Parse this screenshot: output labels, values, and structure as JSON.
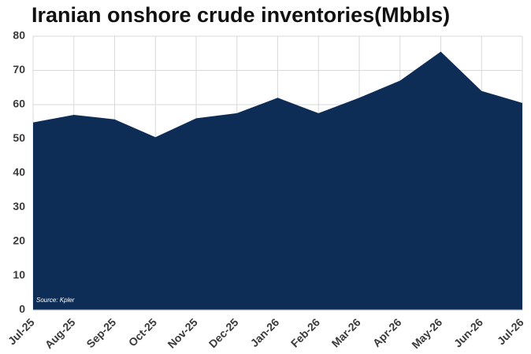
{
  "chart_data": {
    "type": "area",
    "title": "Iranian onshore crude inventories(Mbbls)",
    "source": "Source: Kpler",
    "categories": [
      "Jul-25",
      "Aug-25",
      "Sep-25",
      "Oct-25",
      "Nov-25",
      "Dec-25",
      "Jan-26",
      "Feb-26",
      "Mar-26",
      "Apr-26",
      "May-26",
      "Jun-26",
      "Jul-26"
    ],
    "values": [
      54.8,
      57,
      55.7,
      50.5,
      56,
      57.5,
      62,
      57.5,
      62,
      67,
      75.5,
      64,
      60.5
    ],
    "color": "#0d2d57",
    "ylim": [
      0,
      80
    ],
    "yticks": [
      0,
      10,
      20,
      30,
      40,
      50,
      60,
      70,
      80
    ],
    "grid": true
  }
}
